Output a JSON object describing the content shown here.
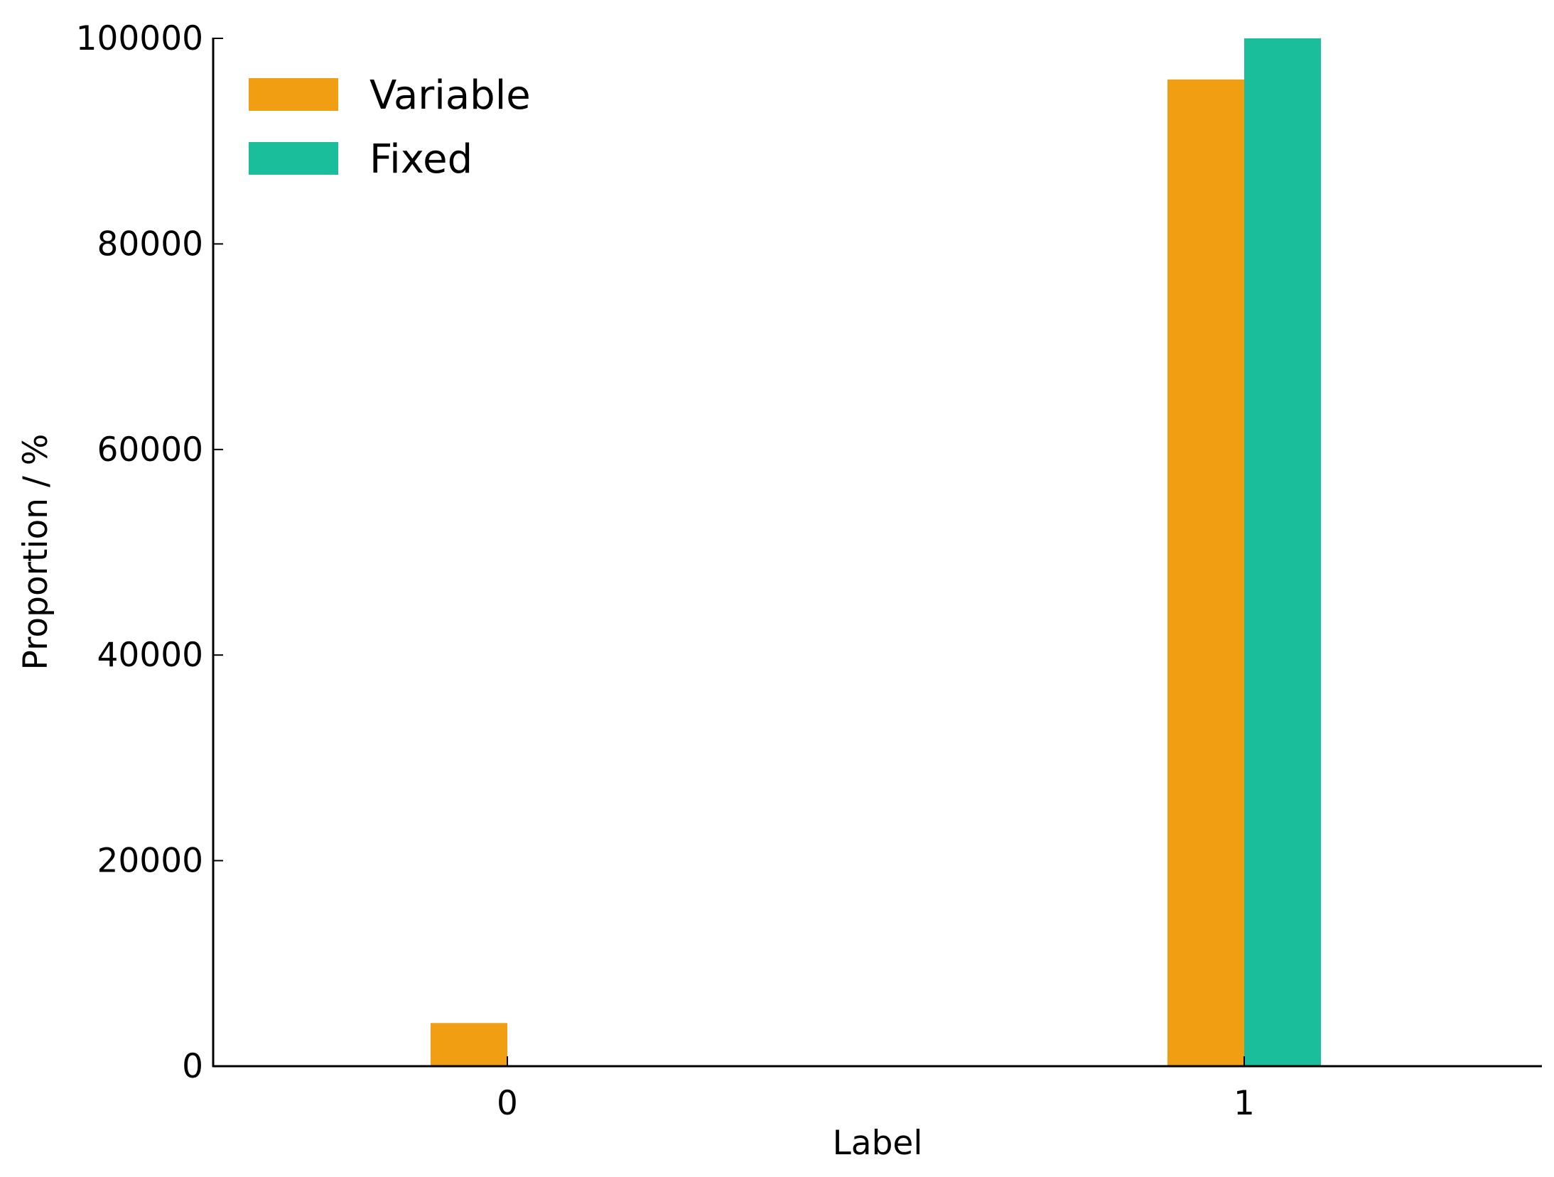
{
  "chart_data": {
    "type": "bar",
    "title": "",
    "xlabel": "Label",
    "ylabel": "Proportion / %",
    "categories": [
      "0",
      "1"
    ],
    "series": [
      {
        "name": "Variable",
        "color": "#f29e12",
        "values": [
          4200,
          96000
        ]
      },
      {
        "name": "Fixed",
        "color": "#1bbe9b",
        "values": [
          0,
          100000
        ]
      }
    ],
    "ylim": [
      0,
      100000
    ],
    "yticks": [
      0,
      20000,
      40000,
      60000,
      80000,
      100000
    ],
    "ytick_labels": [
      "0",
      "20000",
      "40000",
      "60000",
      "80000",
      "100000"
    ],
    "grid": false,
    "legend_position": "top-left"
  }
}
